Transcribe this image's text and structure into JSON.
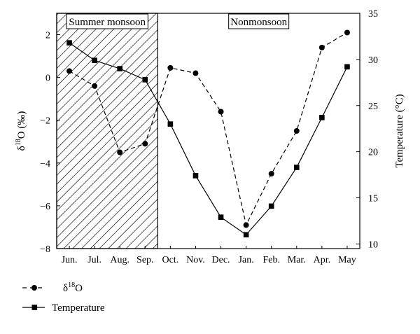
{
  "chart_data": {
    "type": "line",
    "categories": [
      "Jun.",
      "Jul.",
      "Aug.",
      "Sep.",
      "Oct.",
      "Nov.",
      "Dec.",
      "Jan.",
      "Feb.",
      "Mar.",
      "Apr.",
      "May"
    ],
    "regions": [
      {
        "label": "Summer monsoon",
        "from": "Jun.",
        "to": "Sep.",
        "pattern": "hatched"
      },
      {
        "label": "Nonmonsoon",
        "from": "Oct.",
        "to": "May",
        "pattern": "none"
      }
    ],
    "y_left": {
      "label": "δ18O (‰)",
      "label_main": "δ",
      "label_sup": "18",
      "label_rest": "O (‰)",
      "ylim": [
        -8,
        3
      ],
      "ticks": [
        "2",
        "0",
        "−2",
        "−4",
        "−6",
        "−8"
      ],
      "tick_values": [
        2,
        0,
        -2,
        -4,
        -6,
        -8
      ]
    },
    "y_right": {
      "label": "Temperature (°C)",
      "ylim": [
        9.5,
        35
      ],
      "ticks": [
        "35",
        "30",
        "25",
        "20",
        "15",
        "10"
      ],
      "tick_values": [
        35,
        30,
        25,
        20,
        15,
        10
      ]
    },
    "series": [
      {
        "name": "δ18O",
        "legend_main": "δ",
        "legend_sup": "18",
        "legend_rest": "O",
        "axis": "left",
        "marker": "circle",
        "line": "dashed",
        "values": [
          0.3,
          -0.4,
          -3.5,
          -3.1,
          0.45,
          0.2,
          -1.6,
          -6.9,
          -4.5,
          -2.5,
          1.4,
          2.1
        ]
      },
      {
        "name": "Temperature",
        "legend_main": "Temperature",
        "axis": "right",
        "marker": "square",
        "line": "solid",
        "values": [
          31.8,
          29.9,
          29.0,
          27.8,
          23.0,
          17.4,
          12.9,
          11.0,
          14.1,
          18.3,
          23.7,
          29.2
        ]
      }
    ],
    "legend_position": "bottom-left",
    "colors": {
      "line": "#000000",
      "background": "#ffffff"
    }
  }
}
